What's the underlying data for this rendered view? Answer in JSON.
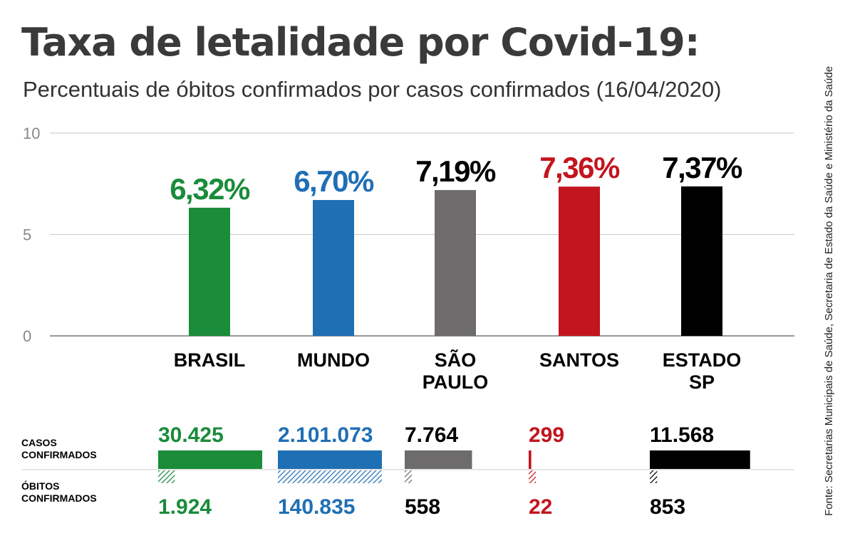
{
  "title": "Taxa de letalidade por Covid-19:",
  "subtitle": "Percentuais de óbitos confirmados por casos confirmados (16/04/2020)",
  "source": "Fonte: Secretarias Municipais de Saúde, Secretaria de Estado da Saúde e Ministério da Saúde",
  "chart_data": {
    "type": "bar",
    "categories": [
      "BRASIL",
      "MUNDO",
      "SÃO\nPAULO",
      "SANTOS",
      "ESTADO\nSP"
    ],
    "values": [
      6.32,
      6.7,
      7.19,
      7.36,
      7.37
    ],
    "value_labels": [
      "6,32%",
      "6,70%",
      "7,19%",
      "7,36%",
      "7,37%"
    ],
    "colors": [
      "#1a8c3a",
      "#1f6fb5",
      "#6d6b6b",
      "#c3151f",
      "#000000"
    ],
    "label_colors": [
      "#1a8c3a",
      "#1f6fb5",
      "#000000",
      "#c3151f",
      "#000000"
    ],
    "ylim": [
      0,
      10
    ],
    "yticks": [
      0,
      5,
      10
    ],
    "ytick_labels": [
      "0",
      "5",
      "10"
    ],
    "grid": true
  },
  "table": {
    "row_labels": {
      "casos": [
        "CASOS",
        "CONFIRMADOS"
      ],
      "obitos": [
        "ÓBITOS",
        "CONFIRMADOS"
      ]
    },
    "casos_values": [
      "30.425",
      "2.101.073",
      "7.764",
      "299",
      "11.568"
    ],
    "obitos_values": [
      "1.924",
      "140.835",
      "558",
      "22",
      "853"
    ]
  }
}
